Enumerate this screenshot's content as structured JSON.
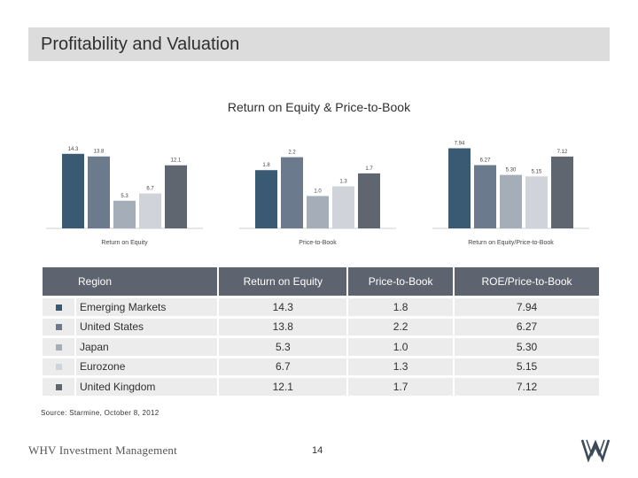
{
  "header": {
    "title": "Profitability and Valuation"
  },
  "chart_data": {
    "type": "bar",
    "title": "Return on Equity & Price-to-Book",
    "categories": [
      "Emerging Markets",
      "United States",
      "Japan",
      "Eurozone",
      "United Kingdom"
    ],
    "colors": [
      "#3a5a73",
      "#6b7b8d",
      "#a5adb9",
      "#d0d4da",
      "#5f6670"
    ],
    "panels": [
      {
        "label": "Return on Equity",
        "values": [
          14.3,
          13.8,
          5.3,
          6.7,
          12.1
        ],
        "labels": [
          "14.3",
          "13.8",
          "5.3",
          "6.7",
          "12.1"
        ],
        "ylim": [
          0,
          18
        ]
      },
      {
        "label": "Price-to-Book",
        "values": [
          1.8,
          2.2,
          1.0,
          1.3,
          1.7
        ],
        "labels": [
          "1.8",
          "2.2",
          "1.0",
          "1.3",
          "1.7"
        ],
        "ylim": [
          0,
          2.9
        ]
      },
      {
        "label": "Return on Equity/Price-to-Book",
        "values": [
          7.94,
          6.27,
          5.3,
          5.15,
          7.12
        ],
        "labels": [
          "7.94",
          "6.27",
          "5.30",
          "5.15",
          "7.12"
        ],
        "ylim": [
          0,
          9.3
        ]
      }
    ]
  },
  "table": {
    "headers": [
      "Region",
      "Return on Equity",
      "Price-to-Book",
      "ROE/Price-to-Book"
    ],
    "rows": [
      {
        "color": "#3a5a73",
        "region": "Emerging Markets",
        "roe": "14.3",
        "pb": "1.8",
        "ratio": "7.94"
      },
      {
        "color": "#6b7b8d",
        "region": "United States",
        "roe": "13.8",
        "pb": "2.2",
        "ratio": "6.27"
      },
      {
        "color": "#a5adb9",
        "region": "Japan",
        "roe": "5.3",
        "pb": "1.0",
        "ratio": "5.30"
      },
      {
        "color": "#d0d4da",
        "region": "Eurozone",
        "roe": "6.7",
        "pb": "1.3",
        "ratio": "5.15"
      },
      {
        "color": "#5f6670",
        "region": "United Kingdom",
        "roe": "12.1",
        "pb": "1.7",
        "ratio": "7.12"
      }
    ]
  },
  "footer": {
    "source": "Source: Starmine, October 8, 2012",
    "logo": "WHV Investment Management",
    "page": "14"
  }
}
